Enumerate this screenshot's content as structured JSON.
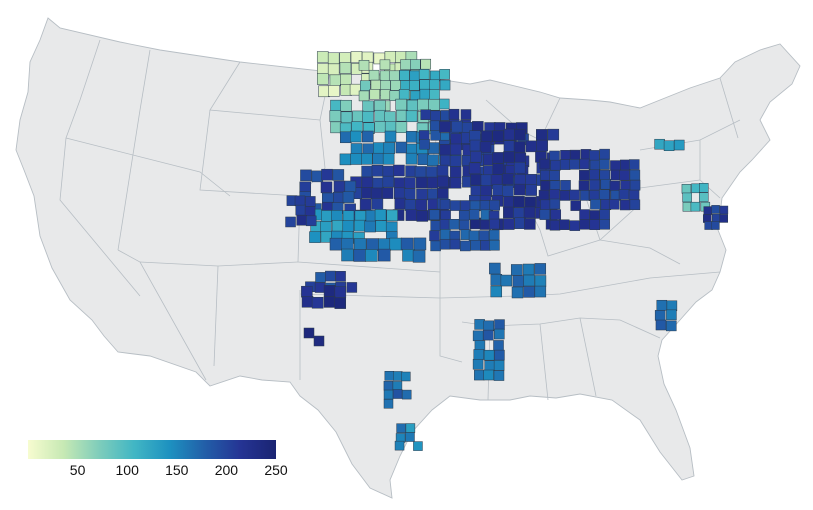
{
  "colorbar": {
    "min": 0,
    "max": 250,
    "tick_values": [
      50,
      100,
      150,
      200,
      250
    ],
    "tick_labels": [
      "50",
      "100",
      "150",
      "200",
      "250"
    ],
    "colors": [
      "#f7fcd0",
      "#c7e9b4",
      "#7fcdbb",
      "#41b6c4",
      "#1d91c0",
      "#225ea8",
      "#253494",
      "#1a2472"
    ]
  },
  "map": {
    "region": "contiguous United States",
    "land_color": "#e8e9ea",
    "border_color": "#b7bec4",
    "ocean_color": "#ffffff"
  },
  "county_values": {
    "north_dakota_nw": 30,
    "north_dakota_central": 60,
    "north_dakota_east": 110,
    "south_dakota_north": 90,
    "south_dakota_south": 160,
    "minnesota_sw": 200,
    "iowa": 215,
    "illinois": 220,
    "indiana": 215,
    "ohio_west": 205,
    "nebraska_east": 215,
    "nebraska_west": 200,
    "kansas_north": 140,
    "kansas_south": 165,
    "colorado_east": 210,
    "oklahoma_panhandle": 200,
    "texas_panhandle": 225,
    "missouri": 190,
    "kentucky": 170,
    "mississippi_delta": 165,
    "texas_central": 170,
    "texas_coast": 150,
    "pennsylvania": 90,
    "maryland_delaware": 210,
    "north_carolina": 170,
    "new_york": 130
  }
}
